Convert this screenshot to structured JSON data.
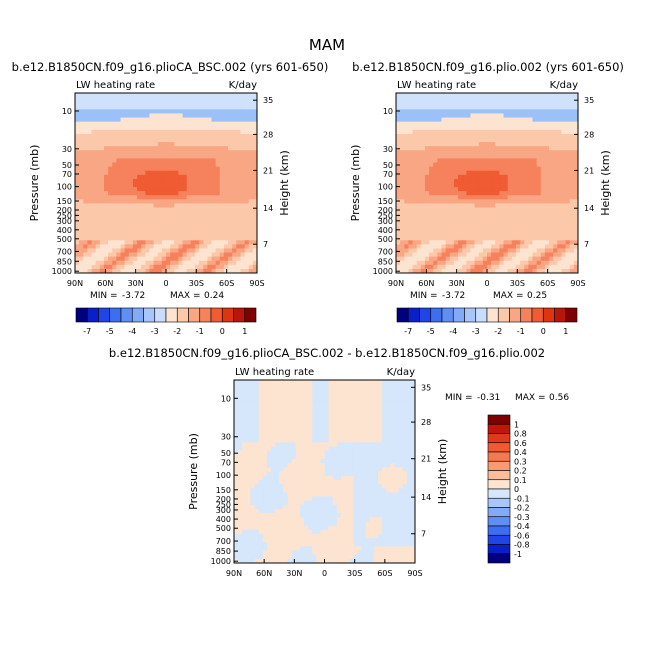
{
  "figure": {
    "title": "MAM"
  },
  "chart_data": [
    {
      "type": "heatmap",
      "id": "panel1",
      "title": "b.e12.B1850CN.f09_g16.plioCA_BSC.002 (yrs 601-650)",
      "left_label": "LW heating rate",
      "right_label": "K/day",
      "xlabel": "",
      "ylabel": "Pressure (mb)",
      "ylabel_right": "Height (km)",
      "x_ticks": [
        "90N",
        "60N",
        "30N",
        "0",
        "30S",
        "60S",
        "90S"
      ],
      "y_ticks": [
        "10",
        "30",
        "50",
        "70",
        "100",
        "150",
        "200",
        "250",
        "300",
        "400",
        "500",
        "700",
        "850",
        "1000"
      ],
      "height_ticks": [
        "35",
        "28",
        "21",
        "14",
        "7"
      ],
      "min_label": "MIN =",
      "min_value": "-3.72",
      "max_label": "MAX =",
      "max_value": "0.24",
      "colorbar_labels": [
        "-7",
        "-5",
        "-4",
        "-3",
        "-2",
        "-1",
        "0",
        "1"
      ],
      "colorbar_colors": [
        "#00007f",
        "#0a1fc9",
        "#1f45e8",
        "#3d6ef2",
        "#5f8ff5",
        "#82aaf7",
        "#a8c6f9",
        "#c9ddfb",
        "#fde4d0",
        "#fbc9aa",
        "#f9a684",
        "#f6825d",
        "#f05b33",
        "#de3412",
        "#b9150a",
        "#7f0000"
      ]
    },
    {
      "type": "heatmap",
      "id": "panel2",
      "title": "b.e12.B1850CN.f09_g16.plio.002 (yrs 601-650)",
      "left_label": "LW heating rate",
      "right_label": "K/day",
      "xlabel": "",
      "ylabel": "Pressure (mb)",
      "ylabel_right": "Height (km)",
      "x_ticks": [
        "90N",
        "60N",
        "30N",
        "0",
        "30S",
        "60S",
        "90S"
      ],
      "y_ticks": [
        "10",
        "30",
        "50",
        "70",
        "100",
        "150",
        "200",
        "250",
        "300",
        "400",
        "500",
        "700",
        "850",
        "1000"
      ],
      "height_ticks": [
        "35",
        "28",
        "21",
        "14",
        "7"
      ],
      "min_label": "MIN =",
      "min_value": "-3.72",
      "max_label": "MAX =",
      "max_value": "0.25",
      "colorbar_labels": [
        "-7",
        "-5",
        "-4",
        "-3",
        "-2",
        "-1",
        "0",
        "1"
      ],
      "colorbar_colors": [
        "#00007f",
        "#0a1fc9",
        "#1f45e8",
        "#3d6ef2",
        "#5f8ff5",
        "#82aaf7",
        "#a8c6f9",
        "#c9ddfb",
        "#fde4d0",
        "#fbc9aa",
        "#f9a684",
        "#f6825d",
        "#f05b33",
        "#de3412",
        "#b9150a",
        "#7f0000"
      ]
    },
    {
      "type": "heatmap",
      "id": "panel3",
      "title": "b.e12.B1850CN.f09_g16.plioCA_BSC.002 - b.e12.B1850CN.f09_g16.plio.002",
      "left_label": "LW heating rate",
      "right_label": "K/day",
      "xlabel": "",
      "ylabel": "Pressure (mb)",
      "ylabel_right": "Height (km)",
      "x_ticks": [
        "90N",
        "60N",
        "30N",
        "0",
        "30S",
        "60S",
        "90S"
      ],
      "y_ticks": [
        "10",
        "30",
        "50",
        "70",
        "100",
        "150",
        "200",
        "250",
        "300",
        "400",
        "500",
        "700",
        "850",
        "1000"
      ],
      "height_ticks": [
        "35",
        "28",
        "21",
        "14",
        "7"
      ],
      "min_label": "MIN =",
      "min_value": "-0.31",
      "max_label": "MAX =",
      "max_value": "0.56",
      "colorbar_labels": [
        "1",
        "0.8",
        "0.6",
        "0.4",
        "0.3",
        "0.2",
        "0.1",
        "0",
        "-0.1",
        "-0.2",
        "-0.3",
        "-0.4",
        "-0.6",
        "-0.8",
        "-1"
      ],
      "colorbar_colors": [
        "#7f0000",
        "#c0160b",
        "#e2381b",
        "#f15a30",
        "#f6784f",
        "#f99a73",
        "#fbbe9b",
        "#fde4d0",
        "#d6e6fb",
        "#a8c6f9",
        "#82aaf7",
        "#5f8ff5",
        "#3d6ef2",
        "#1f45e8",
        "#0a1fc9",
        "#00007f"
      ]
    }
  ]
}
